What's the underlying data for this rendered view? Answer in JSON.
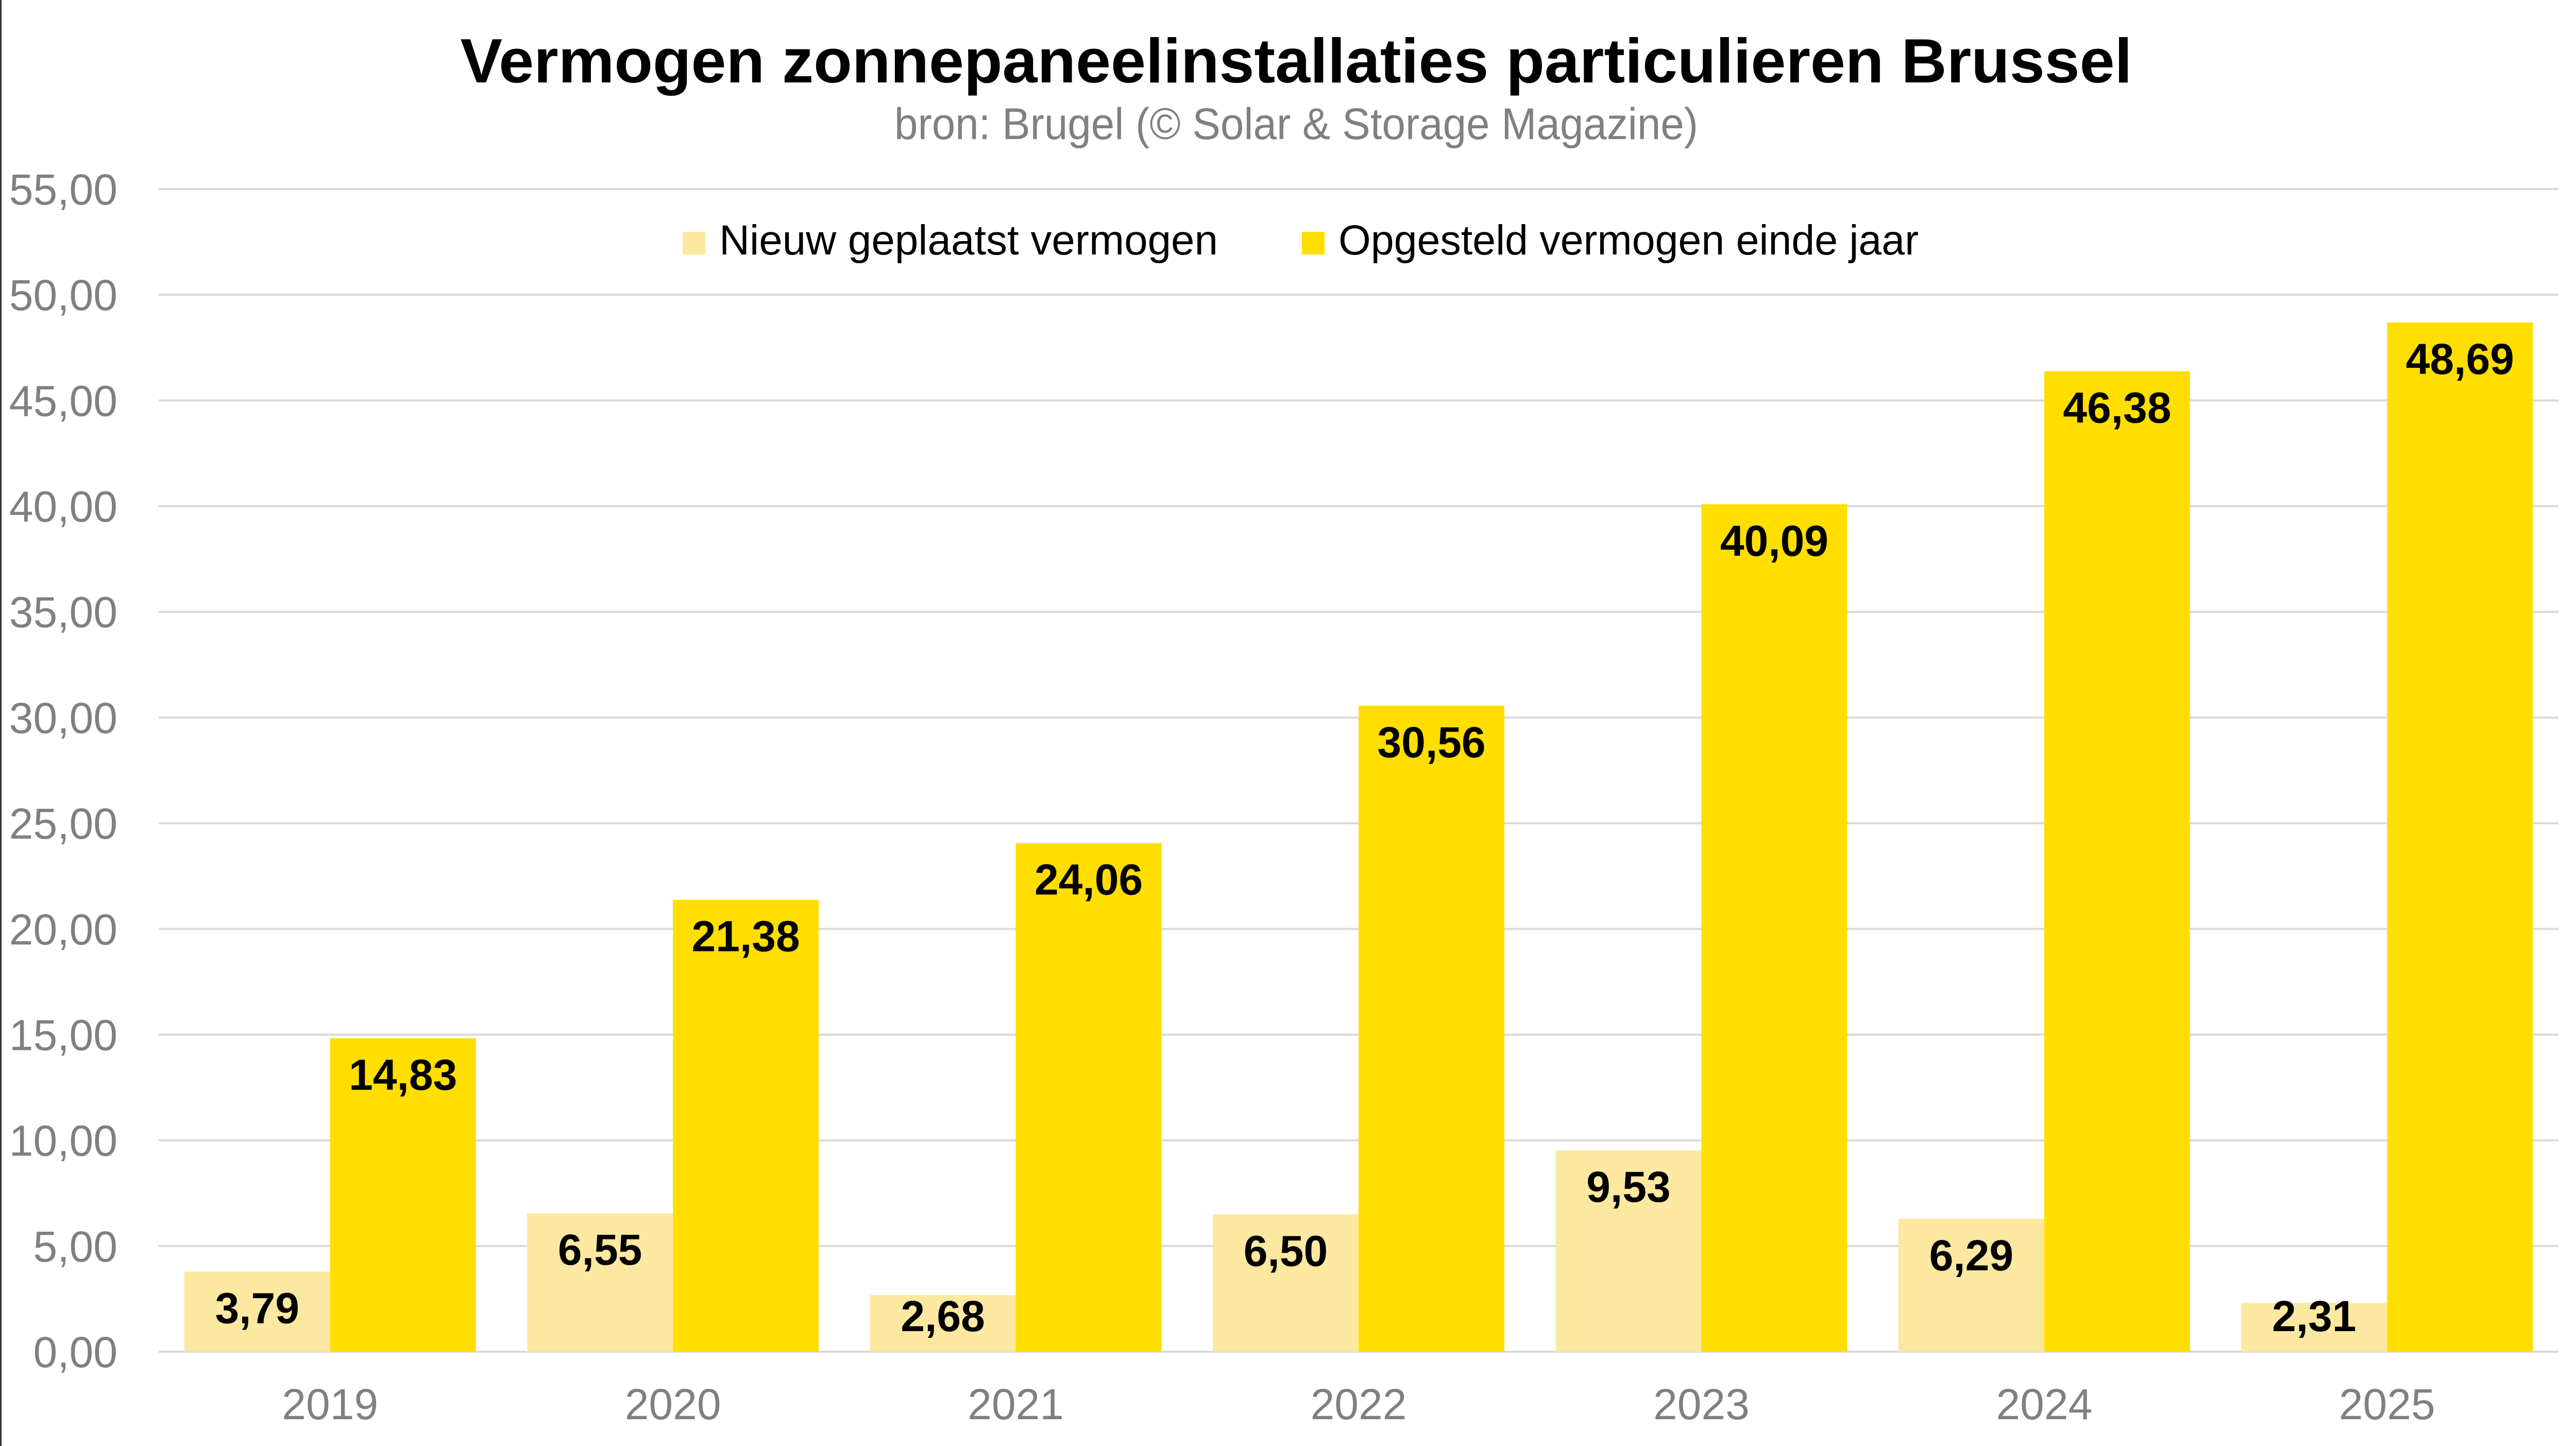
{
  "chart_data": {
    "type": "bar",
    "title": "Vermogen zonnepaneelinstallaties particulieren Brussel",
    "subtitle": "bron: Brugel (© Solar & Storage Magazine)",
    "xlabel": "",
    "ylabel": "",
    "categories": [
      "2019",
      "2020",
      "2021",
      "2022",
      "2023",
      "2024",
      "2025"
    ],
    "series": [
      {
        "name": "Nieuw geplaatst vermogen",
        "color": "#FCE8A0",
        "values": [
          3.79,
          6.55,
          2.68,
          6.5,
          9.53,
          6.29,
          2.31
        ],
        "labels": [
          "3,79",
          "6,55",
          "2,68",
          "6,50",
          "9,53",
          "6,29",
          "2,31"
        ]
      },
      {
        "name": "Opgesteld vermogen einde jaar",
        "color": "#FFDE00",
        "values": [
          14.83,
          21.38,
          24.06,
          30.56,
          40.09,
          46.38,
          48.69
        ],
        "labels": [
          "14,83",
          "21,38",
          "24,06",
          "30,56",
          "40,09",
          "46,38",
          "48,69"
        ]
      }
    ],
    "ylim": [
      0,
      55
    ],
    "yticks": [
      0,
      5,
      10,
      15,
      20,
      25,
      30,
      35,
      40,
      45,
      50,
      55
    ],
    "ytick_labels": [
      "0,00",
      "5,00",
      "10,00",
      "15,00",
      "20,00",
      "25,00",
      "30,00",
      "35,00",
      "40,00",
      "45,00",
      "50,00",
      "55,00"
    ],
    "grid": true,
    "gridline_color": "#D9D9D9",
    "legend_position": "top-center",
    "data_labels": "inside-end"
  }
}
